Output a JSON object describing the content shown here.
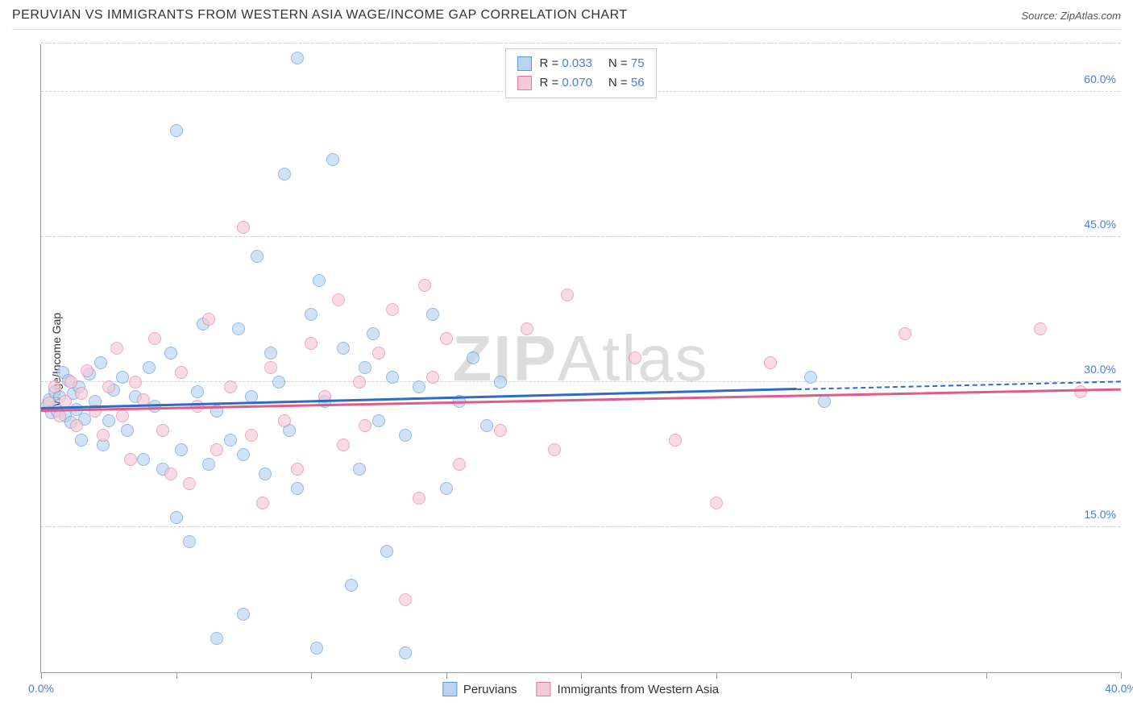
{
  "title": "PERUVIAN VS IMMIGRANTS FROM WESTERN ASIA WAGE/INCOME GAP CORRELATION CHART",
  "source": "Source: ZipAtlas.com",
  "ylabel": "Wage/Income Gap",
  "watermark_bold": "ZIP",
  "watermark_light": "Atlas",
  "chart": {
    "type": "scatter",
    "xlim": [
      0,
      40
    ],
    "ylim": [
      0,
      65
    ],
    "xticks": [
      0,
      5,
      10,
      15,
      20,
      25,
      30,
      35,
      40
    ],
    "xtick_labels": {
      "0": "0.0%",
      "40": "40.0%"
    },
    "yticks": [
      15,
      30,
      45,
      60
    ],
    "ytick_labels": {
      "15": "15.0%",
      "30": "30.0%",
      "45": "45.0%",
      "60": "60.0%"
    },
    "background_color": "#ffffff",
    "grid_color": "#d0d0d0",
    "axis_color": "#999999",
    "tick_label_color": "#4a7fd8",
    "marker_size": 16,
    "marker_opacity": 0.65
  },
  "series": [
    {
      "name": "Peruvians",
      "fill": "#b8d4f0",
      "stroke": "#5a95d6",
      "line": "#2e6bc4",
      "r_label": "R = ",
      "r_value": "0.033",
      "n_label": "N = ",
      "n_value": "75",
      "trend": {
        "x1": 0,
        "y1": 27.2,
        "x2": 28,
        "y2": 29.2,
        "x2_dash": 40,
        "y2_dash": 30.0
      },
      "points": [
        [
          0.2,
          27.5
        ],
        [
          0.3,
          28.2
        ],
        [
          0.4,
          26.8
        ],
        [
          0.5,
          29.0
        ],
        [
          0.6,
          27.0
        ],
        [
          0.7,
          28.5
        ],
        [
          0.8,
          31.0
        ],
        [
          0.9,
          26.5
        ],
        [
          1.0,
          30.2
        ],
        [
          1.1,
          25.8
        ],
        [
          1.2,
          28.8
        ],
        [
          1.3,
          27.2
        ],
        [
          1.4,
          29.5
        ],
        [
          1.5,
          24.0
        ],
        [
          1.6,
          26.2
        ],
        [
          1.8,
          30.8
        ],
        [
          2.0,
          28.0
        ],
        [
          2.2,
          32.0
        ],
        [
          2.3,
          23.5
        ],
        [
          2.5,
          26.0
        ],
        [
          2.7,
          29.2
        ],
        [
          3.0,
          30.5
        ],
        [
          3.2,
          25.0
        ],
        [
          3.5,
          28.5
        ],
        [
          3.8,
          22.0
        ],
        [
          4.0,
          31.5
        ],
        [
          4.2,
          27.5
        ],
        [
          4.5,
          21.0
        ],
        [
          4.8,
          33.0
        ],
        [
          5.0,
          56.0
        ],
        [
          5.2,
          23.0
        ],
        [
          5.5,
          13.5
        ],
        [
          5.8,
          29.0
        ],
        [
          5.0,
          16.0
        ],
        [
          6.0,
          36.0
        ],
        [
          6.2,
          21.5
        ],
        [
          6.5,
          3.5
        ],
        [
          6.5,
          27.0
        ],
        [
          7.0,
          24.0
        ],
        [
          7.3,
          35.5
        ],
        [
          7.5,
          22.5
        ],
        [
          7.8,
          28.5
        ],
        [
          7.5,
          6.0
        ],
        [
          8.0,
          43.0
        ],
        [
          8.3,
          20.5
        ],
        [
          8.5,
          33.0
        ],
        [
          8.8,
          30.0
        ],
        [
          9.0,
          51.5
        ],
        [
          9.2,
          25.0
        ],
        [
          9.5,
          19.0
        ],
        [
          9.5,
          63.5
        ],
        [
          10.0,
          37.0
        ],
        [
          10.2,
          2.5
        ],
        [
          10.3,
          40.5
        ],
        [
          10.5,
          28.0
        ],
        [
          10.8,
          53.0
        ],
        [
          11.2,
          33.5
        ],
        [
          11.5,
          9.0
        ],
        [
          11.8,
          21.0
        ],
        [
          12.0,
          31.5
        ],
        [
          12.3,
          35.0
        ],
        [
          12.5,
          26.0
        ],
        [
          12.8,
          12.5
        ],
        [
          13.0,
          30.5
        ],
        [
          13.5,
          24.5
        ],
        [
          13.5,
          2.0
        ],
        [
          14.0,
          29.5
        ],
        [
          14.5,
          37.0
        ],
        [
          15.0,
          19.0
        ],
        [
          15.5,
          28.0
        ],
        [
          16.0,
          32.5
        ],
        [
          16.5,
          25.5
        ],
        [
          17.0,
          30.0
        ],
        [
          28.5,
          30.5
        ],
        [
          29.0,
          28.0
        ]
      ]
    },
    {
      "name": "Immigrants from Western Asia",
      "fill": "#f5c9d6",
      "stroke": "#e37ba0",
      "line": "#e05a8a",
      "r_label": "R = ",
      "r_value": "0.070",
      "n_label": "N = ",
      "n_value": "56",
      "trend": {
        "x1": 0,
        "y1": 27.0,
        "x2": 40,
        "y2": 29.2
      },
      "points": [
        [
          0.3,
          27.8
        ],
        [
          0.5,
          29.5
        ],
        [
          0.7,
          26.5
        ],
        [
          0.9,
          28.0
        ],
        [
          1.1,
          30.0
        ],
        [
          1.3,
          25.5
        ],
        [
          1.5,
          28.8
        ],
        [
          1.7,
          31.2
        ],
        [
          2.0,
          27.0
        ],
        [
          2.3,
          24.5
        ],
        [
          2.5,
          29.5
        ],
        [
          2.8,
          33.5
        ],
        [
          3.0,
          26.5
        ],
        [
          3.3,
          22.0
        ],
        [
          3.5,
          30.0
        ],
        [
          3.8,
          28.2
        ],
        [
          4.2,
          34.5
        ],
        [
          4.5,
          25.0
        ],
        [
          4.8,
          20.5
        ],
        [
          5.2,
          31.0
        ],
        [
          5.5,
          19.5
        ],
        [
          5.8,
          27.5
        ],
        [
          6.2,
          36.5
        ],
        [
          6.5,
          23.0
        ],
        [
          7.0,
          29.5
        ],
        [
          7.5,
          46.0
        ],
        [
          7.8,
          24.5
        ],
        [
          8.2,
          17.5
        ],
        [
          8.5,
          31.5
        ],
        [
          9.0,
          26.0
        ],
        [
          9.5,
          21.0
        ],
        [
          10.0,
          34.0
        ],
        [
          10.5,
          28.5
        ],
        [
          11.0,
          38.5
        ],
        [
          11.2,
          23.5
        ],
        [
          11.8,
          30.0
        ],
        [
          12.0,
          25.5
        ],
        [
          12.5,
          33.0
        ],
        [
          13.0,
          37.5
        ],
        [
          13.5,
          7.5
        ],
        [
          14.0,
          18.0
        ],
        [
          14.2,
          40.0
        ],
        [
          14.5,
          30.5
        ],
        [
          15.0,
          34.5
        ],
        [
          15.5,
          21.5
        ],
        [
          17.0,
          25.0
        ],
        [
          18.0,
          35.5
        ],
        [
          19.0,
          23.0
        ],
        [
          19.5,
          39.0
        ],
        [
          22.0,
          32.5
        ],
        [
          23.5,
          24.0
        ],
        [
          25.0,
          17.5
        ],
        [
          27.0,
          32.0
        ],
        [
          32.0,
          35.0
        ],
        [
          37.0,
          35.5
        ],
        [
          38.5,
          29.0
        ]
      ]
    }
  ]
}
